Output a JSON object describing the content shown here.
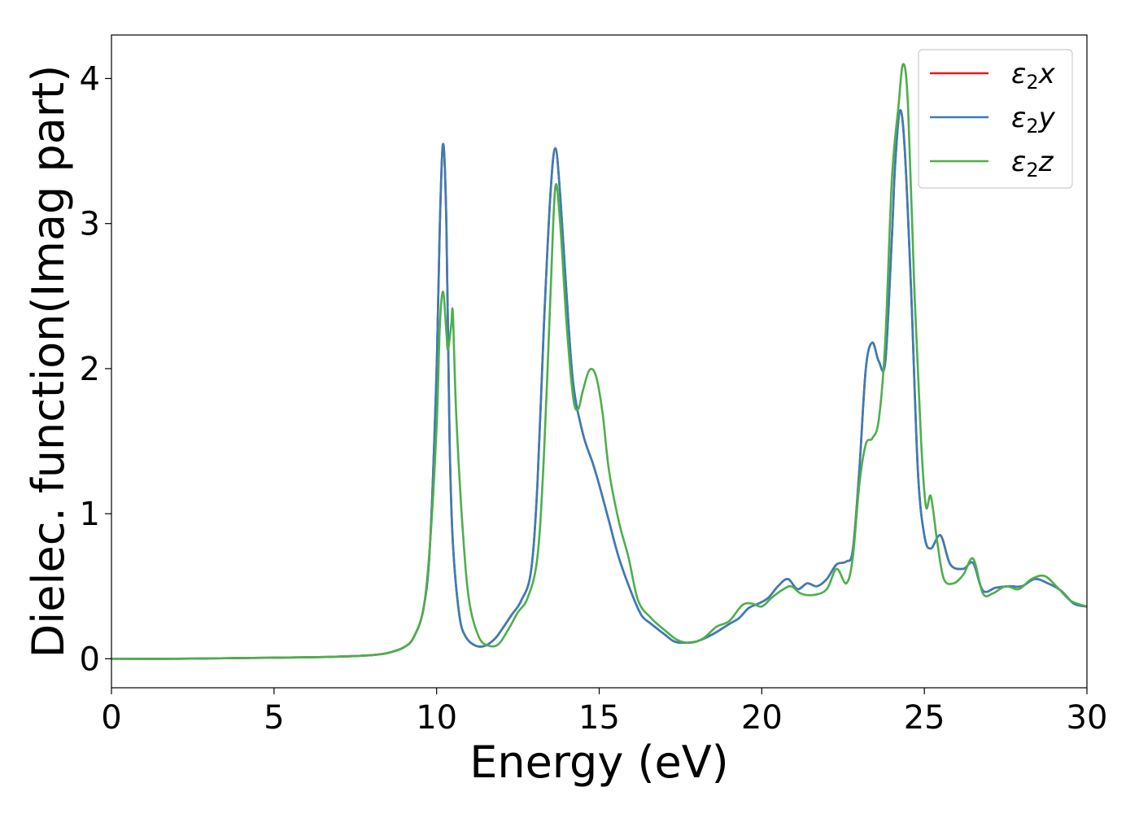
{
  "chart_data": {
    "type": "line",
    "title": "",
    "xlabel": "Energy (eV)",
    "ylabel": "Dielec. function(Imag part)",
    "xlim": [
      0,
      30
    ],
    "ylim": [
      -0.2,
      4.3
    ],
    "xticks": [
      0,
      5,
      10,
      15,
      20,
      25,
      30
    ],
    "yticks": [
      0,
      1,
      2,
      3,
      4
    ],
    "xtick_labels": [
      "0",
      "5",
      "10",
      "15",
      "20",
      "25",
      "30"
    ],
    "ytick_labels": [
      "0",
      "1",
      "2",
      "3",
      "4"
    ],
    "grid": false,
    "legend_position": "top-right",
    "series": [
      {
        "name": "ε2x",
        "name_base": "ε",
        "name_sub": "2",
        "name_suffix": "x",
        "color": "#e41a1c",
        "x": [
          0,
          2,
          4,
          6,
          7,
          8,
          8.5,
          9,
          9.3,
          9.6,
          9.8,
          10.0,
          10.1,
          10.2,
          10.3,
          10.4,
          10.5,
          10.7,
          10.9,
          11.2,
          11.5,
          11.8,
          12.0,
          12.3,
          12.6,
          12.9,
          13.1,
          13.3,
          13.5,
          13.65,
          13.8,
          14.0,
          14.2,
          14.5,
          14.8,
          15.0,
          15.3,
          15.6,
          16.0,
          16.3,
          16.6,
          17.0,
          17.3,
          17.6,
          18.0,
          18.5,
          19.0,
          19.3,
          19.6,
          19.9,
          20.2,
          20.5,
          20.8,
          21.1,
          21.4,
          21.7,
          22.0,
          22.3,
          22.6,
          22.8,
          23.0,
          23.2,
          23.4,
          23.6,
          23.8,
          24.0,
          24.1,
          24.25,
          24.4,
          24.6,
          24.8,
          25.0,
          25.2,
          25.5,
          25.8,
          26.2,
          26.5,
          26.8,
          27.2,
          27.6,
          28.0,
          28.4,
          28.8,
          29.2,
          29.6,
          30.0
        ],
        "values": [
          0.0,
          0.0,
          0.005,
          0.01,
          0.015,
          0.025,
          0.04,
          0.08,
          0.15,
          0.35,
          0.8,
          2.0,
          3.0,
          3.55,
          3.0,
          1.5,
          0.8,
          0.3,
          0.15,
          0.09,
          0.09,
          0.14,
          0.2,
          0.3,
          0.4,
          0.6,
          1.2,
          2.3,
          3.2,
          3.52,
          3.2,
          2.5,
          1.9,
          1.55,
          1.35,
          1.2,
          0.95,
          0.7,
          0.45,
          0.3,
          0.24,
          0.17,
          0.12,
          0.11,
          0.12,
          0.17,
          0.24,
          0.28,
          0.35,
          0.38,
          0.42,
          0.5,
          0.55,
          0.48,
          0.52,
          0.5,
          0.55,
          0.65,
          0.67,
          0.75,
          1.3,
          2.0,
          2.18,
          2.05,
          2.05,
          2.9,
          3.4,
          3.78,
          3.5,
          2.5,
          1.3,
          0.85,
          0.76,
          0.85,
          0.65,
          0.62,
          0.66,
          0.47,
          0.49,
          0.5,
          0.5,
          0.55,
          0.52,
          0.47,
          0.38,
          0.36
        ]
      },
      {
        "name": "ε2y",
        "name_base": "ε",
        "name_sub": "2",
        "name_suffix": "y",
        "color": "#377eb8",
        "x": [
          0,
          2,
          4,
          6,
          7,
          8,
          8.5,
          9,
          9.3,
          9.6,
          9.8,
          10.0,
          10.1,
          10.2,
          10.3,
          10.4,
          10.5,
          10.7,
          10.9,
          11.2,
          11.5,
          11.8,
          12.0,
          12.3,
          12.6,
          12.9,
          13.1,
          13.3,
          13.5,
          13.65,
          13.8,
          14.0,
          14.2,
          14.5,
          14.8,
          15.0,
          15.3,
          15.6,
          16.0,
          16.3,
          16.6,
          17.0,
          17.3,
          17.6,
          18.0,
          18.5,
          19.0,
          19.3,
          19.6,
          19.9,
          20.2,
          20.5,
          20.8,
          21.1,
          21.4,
          21.7,
          22.0,
          22.3,
          22.6,
          22.8,
          23.0,
          23.2,
          23.4,
          23.6,
          23.8,
          24.0,
          24.1,
          24.25,
          24.4,
          24.6,
          24.8,
          25.0,
          25.2,
          25.5,
          25.8,
          26.2,
          26.5,
          26.8,
          27.2,
          27.6,
          28.0,
          28.4,
          28.8,
          29.2,
          29.6,
          30.0
        ],
        "values": [
          0.0,
          0.0,
          0.005,
          0.01,
          0.015,
          0.025,
          0.04,
          0.08,
          0.15,
          0.35,
          0.8,
          2.0,
          3.0,
          3.55,
          3.0,
          1.5,
          0.8,
          0.3,
          0.15,
          0.09,
          0.09,
          0.14,
          0.2,
          0.3,
          0.4,
          0.6,
          1.2,
          2.3,
          3.2,
          3.52,
          3.2,
          2.5,
          1.9,
          1.55,
          1.35,
          1.2,
          0.95,
          0.7,
          0.45,
          0.3,
          0.24,
          0.17,
          0.12,
          0.11,
          0.12,
          0.17,
          0.24,
          0.28,
          0.35,
          0.38,
          0.42,
          0.5,
          0.55,
          0.48,
          0.52,
          0.5,
          0.55,
          0.65,
          0.67,
          0.75,
          1.3,
          2.0,
          2.18,
          2.05,
          2.05,
          2.9,
          3.4,
          3.78,
          3.5,
          2.5,
          1.3,
          0.85,
          0.76,
          0.85,
          0.65,
          0.62,
          0.66,
          0.47,
          0.49,
          0.5,
          0.5,
          0.55,
          0.52,
          0.47,
          0.38,
          0.36
        ]
      },
      {
        "name": "ε2z",
        "name_base": "ε",
        "name_sub": "2",
        "name_suffix": "z",
        "color": "#4daf4a",
        "x": [
          0,
          2,
          4,
          6,
          7,
          8,
          8.5,
          9,
          9.3,
          9.6,
          9.8,
          10.0,
          10.1,
          10.2,
          10.3,
          10.35,
          10.45,
          10.5,
          10.6,
          10.8,
          11.0,
          11.3,
          11.6,
          11.9,
          12.2,
          12.5,
          12.8,
          13.1,
          13.3,
          13.5,
          13.65,
          13.8,
          14.0,
          14.2,
          14.35,
          14.5,
          14.7,
          14.9,
          15.1,
          15.3,
          15.6,
          15.9,
          16.2,
          16.6,
          17.0,
          17.4,
          17.8,
          18.2,
          18.6,
          19.0,
          19.4,
          19.7,
          20.0,
          20.3,
          20.6,
          20.9,
          21.2,
          21.6,
          22.0,
          22.3,
          22.6,
          22.8,
          23.0,
          23.2,
          23.4,
          23.6,
          23.8,
          24.0,
          24.2,
          24.35,
          24.5,
          24.7,
          24.9,
          25.05,
          25.2,
          25.4,
          25.6,
          25.9,
          26.2,
          26.5,
          26.8,
          27.1,
          27.5,
          27.9,
          28.3,
          28.7,
          29.1,
          29.5,
          30.0
        ],
        "values": [
          0.0,
          0.0,
          0.005,
          0.01,
          0.015,
          0.025,
          0.04,
          0.08,
          0.15,
          0.35,
          0.8,
          1.6,
          2.3,
          2.53,
          2.25,
          2.13,
          2.3,
          2.38,
          1.7,
          0.9,
          0.4,
          0.15,
          0.09,
          0.1,
          0.2,
          0.32,
          0.42,
          0.7,
          1.4,
          2.5,
          3.25,
          3.0,
          2.3,
          1.8,
          1.72,
          1.85,
          1.99,
          1.95,
          1.7,
          1.3,
          0.95,
          0.7,
          0.4,
          0.28,
          0.2,
          0.13,
          0.11,
          0.14,
          0.22,
          0.26,
          0.37,
          0.38,
          0.36,
          0.42,
          0.47,
          0.5,
          0.45,
          0.44,
          0.48,
          0.62,
          0.52,
          0.7,
          1.2,
          1.48,
          1.52,
          1.65,
          2.2,
          3.3,
          3.8,
          4.1,
          3.8,
          2.5,
          1.5,
          1.05,
          1.12,
          0.8,
          0.55,
          0.52,
          0.58,
          0.69,
          0.45,
          0.45,
          0.5,
          0.48,
          0.55,
          0.57,
          0.49,
          0.4,
          0.36
        ]
      }
    ]
  }
}
